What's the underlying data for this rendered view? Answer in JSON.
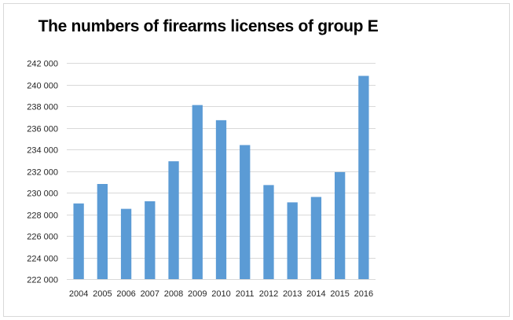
{
  "chart_data": {
    "type": "bar",
    "title": "The numbers of firearms licenses of group E",
    "xlabel": "",
    "ylabel": "",
    "categories": [
      "2004",
      "2005",
      "2006",
      "2007",
      "2008",
      "2009",
      "2010",
      "2011",
      "2012",
      "2013",
      "2014",
      "2015",
      "2016"
    ],
    "values": [
      229000,
      230800,
      228500,
      229200,
      232900,
      238100,
      236700,
      234400,
      230700,
      229100,
      229600,
      231900,
      240800
    ],
    "ylim": [
      222000,
      242000
    ],
    "y_ticks": [
      222000,
      224000,
      226000,
      228000,
      230000,
      232000,
      234000,
      236000,
      238000,
      240000,
      242000
    ],
    "y_tick_labels": [
      "222 000",
      "224 000",
      "226 000",
      "228 000",
      "230 000",
      "232 000",
      "234 000",
      "236 000",
      "238 000",
      "240 000",
      "242 000"
    ],
    "grid": true,
    "legend": "none",
    "bar_color": "#5b9bd5",
    "grid_color": "#d9d9d9"
  }
}
